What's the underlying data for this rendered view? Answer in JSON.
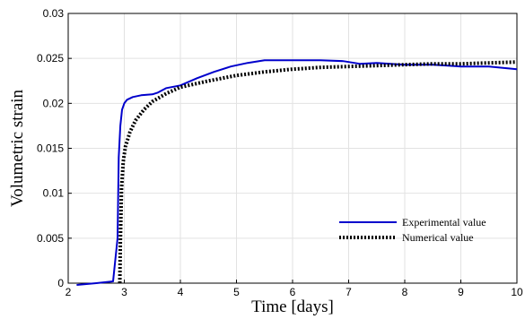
{
  "chart_data": {
    "type": "line",
    "title": "",
    "xlabel": "Time [days]",
    "ylabel": "Volumetric strain",
    "xlim": [
      2,
      10
    ],
    "ylim": [
      0,
      0.03
    ],
    "xticks": [
      "2",
      "3",
      "4",
      "5",
      "6",
      "7",
      "8",
      "9",
      "10"
    ],
    "yticks": [
      "0",
      "0.005",
      "0.01",
      "0.015",
      "0.02",
      "0.025",
      "0.03"
    ],
    "grid": true,
    "legend_position": "bottom-right",
    "series": [
      {
        "name": "Experimental value",
        "color": "#0000cc",
        "style": "solid",
        "x": [
          2.15,
          2.5,
          2.8,
          2.88,
          2.9,
          2.93,
          2.96,
          3.0,
          3.05,
          3.15,
          3.3,
          3.5,
          3.6,
          3.75,
          4.0,
          4.3,
          4.6,
          4.9,
          5.2,
          5.5,
          6.0,
          6.5,
          6.9,
          7.2,
          7.5,
          8.0,
          8.5,
          9.0,
          9.5,
          10.0
        ],
        "y": [
          -0.0002,
          0.0,
          0.0002,
          0.005,
          0.014,
          0.0175,
          0.0193,
          0.02,
          0.0204,
          0.0207,
          0.0209,
          0.021,
          0.0212,
          0.0217,
          0.022,
          0.0228,
          0.0235,
          0.0241,
          0.0245,
          0.0248,
          0.0248,
          0.0248,
          0.0247,
          0.0244,
          0.0245,
          0.0243,
          0.0243,
          0.0241,
          0.0241,
          0.0238
        ]
      },
      {
        "name": "Numerical value",
        "color": "#000000",
        "style": "dotted",
        "x": [
          2.92,
          2.93,
          2.95,
          2.98,
          3.02,
          3.1,
          3.2,
          3.35,
          3.5,
          3.75,
          4.0,
          4.5,
          5.0,
          5.5,
          6.0,
          6.5,
          7.0,
          7.5,
          8.0,
          8.5,
          9.0,
          9.5,
          10.0
        ],
        "y": [
          0.0,
          0.0045,
          0.0105,
          0.0135,
          0.0152,
          0.0168,
          0.0181,
          0.0193,
          0.0202,
          0.0211,
          0.0218,
          0.0225,
          0.0231,
          0.0235,
          0.0238,
          0.024,
          0.0241,
          0.0242,
          0.0243,
          0.0244,
          0.0244,
          0.0245,
          0.0246
        ]
      }
    ]
  }
}
